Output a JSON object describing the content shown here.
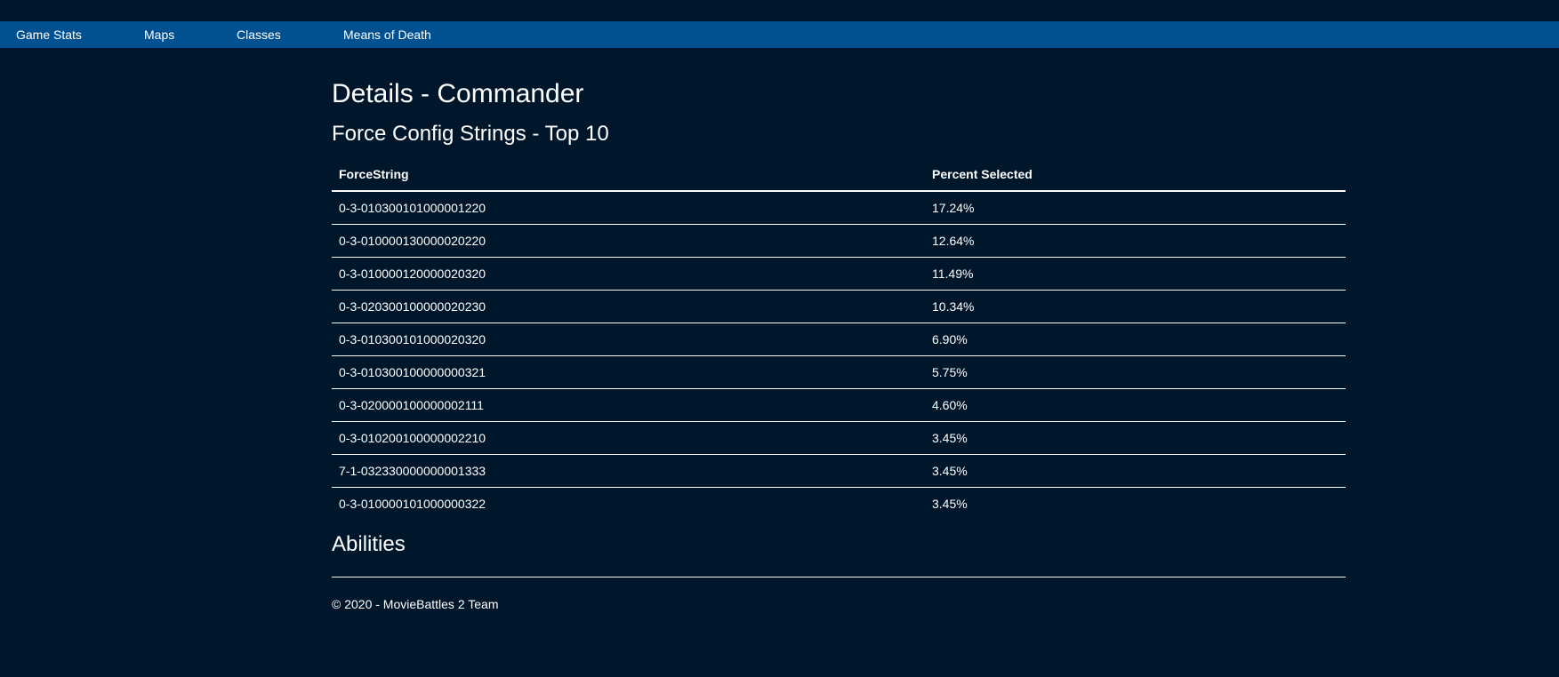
{
  "nav": {
    "items": [
      {
        "label": "Game Stats"
      },
      {
        "label": "Maps"
      },
      {
        "label": "Classes"
      },
      {
        "label": "Means of Death"
      }
    ]
  },
  "page": {
    "title": "Details - Commander",
    "force_section_title": "Force Config Strings - Top 10",
    "abilities_title": "Abilities"
  },
  "table": {
    "headers": [
      "ForceString",
      "Percent Selected"
    ],
    "rows": [
      {
        "force_string": "0-3-010300101000001220",
        "percent": "17.24%"
      },
      {
        "force_string": "0-3-010000130000020220",
        "percent": "12.64%"
      },
      {
        "force_string": "0-3-010000120000020320",
        "percent": "11.49%"
      },
      {
        "force_string": "0-3-020300100000020230",
        "percent": "10.34%"
      },
      {
        "force_string": "0-3-010300101000020320",
        "percent": "6.90%"
      },
      {
        "force_string": "0-3-010300100000000321",
        "percent": "5.75%"
      },
      {
        "force_string": "0-3-020000100000002111",
        "percent": "4.60%"
      },
      {
        "force_string": "0-3-010200100000002210",
        "percent": "3.45%"
      },
      {
        "force_string": "7-1-032330000000001333",
        "percent": "3.45%"
      },
      {
        "force_string": "0-3-010000101000000322",
        "percent": "3.45%"
      }
    ]
  },
  "footer": {
    "text": "© 2020 - MovieBattles 2 Team"
  },
  "colors": {
    "background": "#00172b",
    "navbar": "#01508f",
    "text": "#ffffff"
  }
}
